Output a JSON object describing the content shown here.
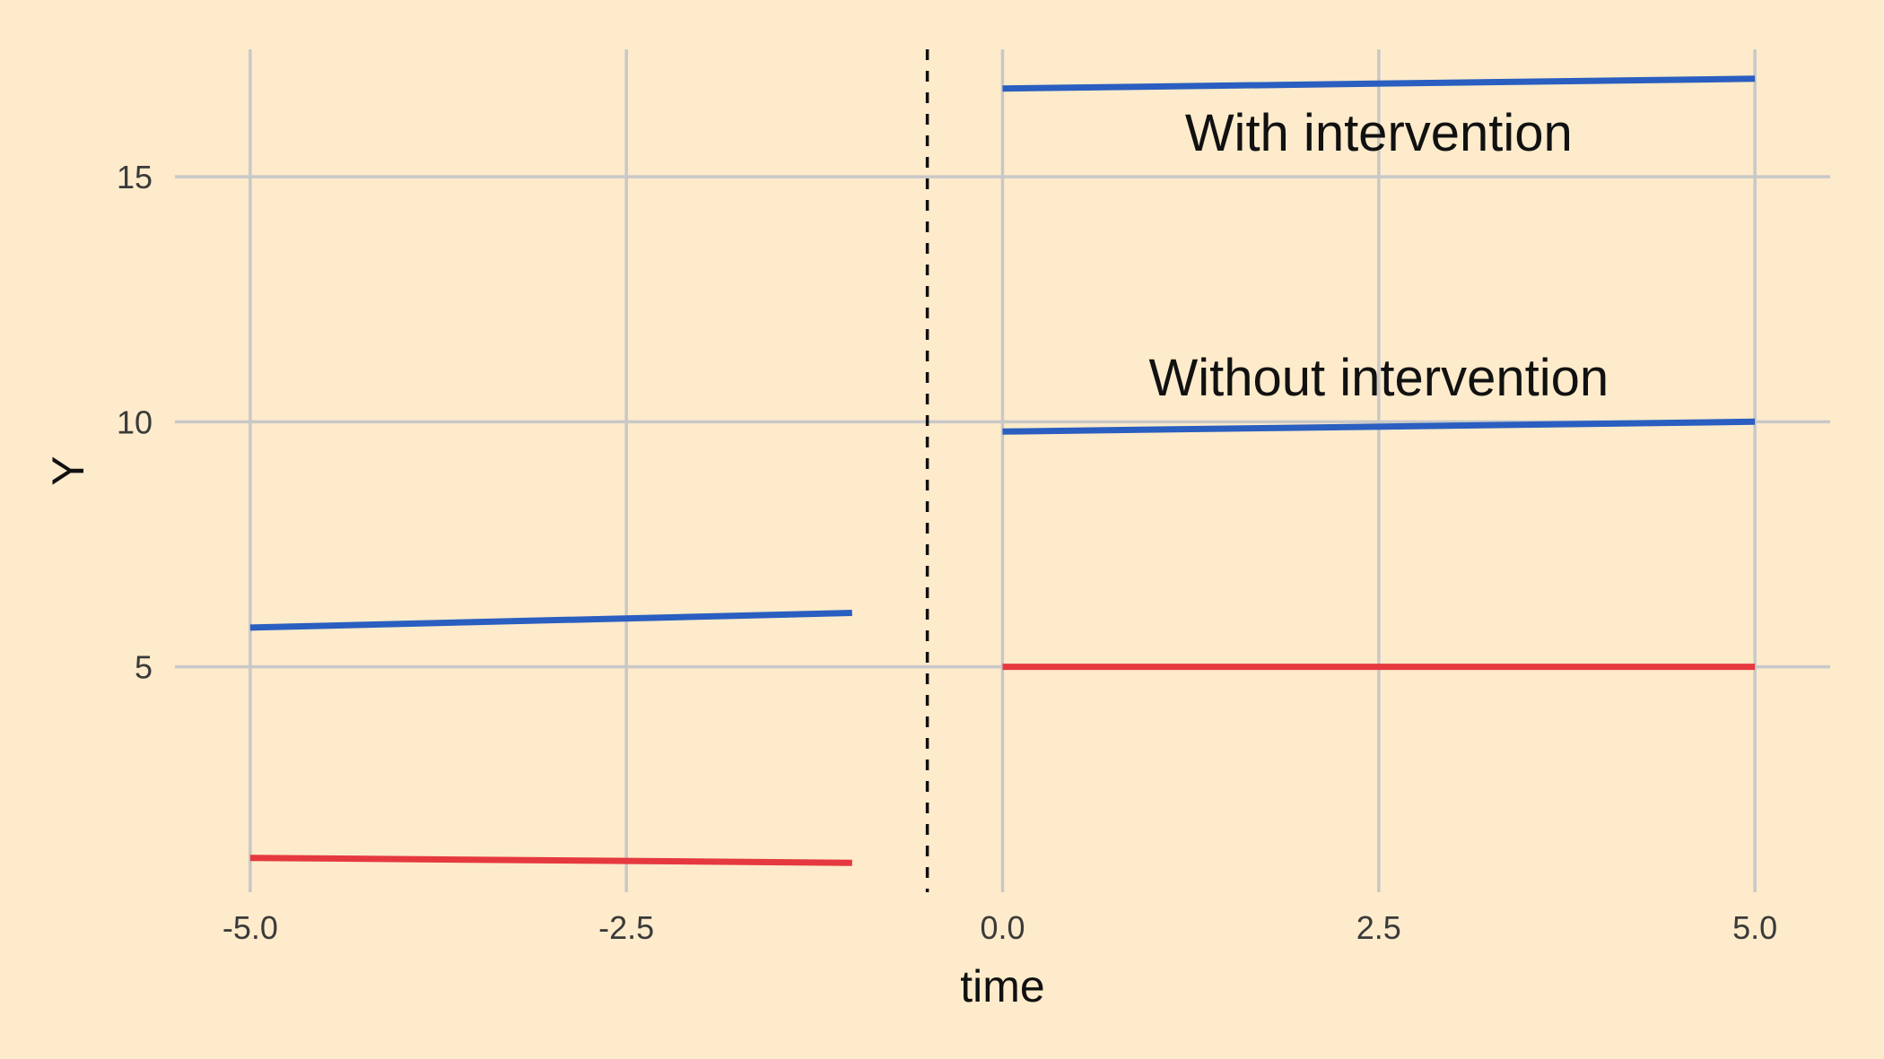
{
  "chart_data": {
    "type": "line",
    "xlabel": "time",
    "ylabel": "Y",
    "xlim": [
      -5.5,
      5.5
    ],
    "ylim": [
      0.4,
      17.6
    ],
    "x_ticks": [
      -5.0,
      -2.5,
      0.0,
      2.5,
      5.0
    ],
    "x_tick_labels": [
      "-5.0",
      "-2.5",
      "0.0",
      "2.5",
      "5.0"
    ],
    "y_ticks": [
      5,
      10,
      15
    ],
    "y_tick_labels": [
      "5",
      "10",
      "15"
    ],
    "grid": true,
    "legend": "none",
    "background_color": "#FDEBCB",
    "grid_color": "#C8C8C8",
    "vline": {
      "x": -0.5,
      "style": "dashed",
      "color": "#111111"
    },
    "series": [
      {
        "color": "#2A5EC0",
        "x": [
          -5.0,
          -1.0
        ],
        "y": [
          5.8,
          6.1
        ]
      },
      {
        "color": "#E5393F",
        "x": [
          -5.0,
          -1.0
        ],
        "y": [
          1.1,
          1.0
        ]
      },
      {
        "color": "#2A5EC0",
        "x": [
          0.0,
          5.0
        ],
        "y": [
          16.8,
          17.0
        ]
      },
      {
        "color": "#2A5EC0",
        "x": [
          0.0,
          5.0
        ],
        "y": [
          9.8,
          10.0
        ]
      },
      {
        "color": "#E5393F",
        "x": [
          0.0,
          5.0
        ],
        "y": [
          5.0,
          5.0
        ]
      }
    ],
    "annotations": [
      {
        "text": "With intervention",
        "x": 2.5,
        "y": 15.9
      },
      {
        "text": "Without intervention",
        "x": 2.5,
        "y": 10.9
      }
    ]
  }
}
